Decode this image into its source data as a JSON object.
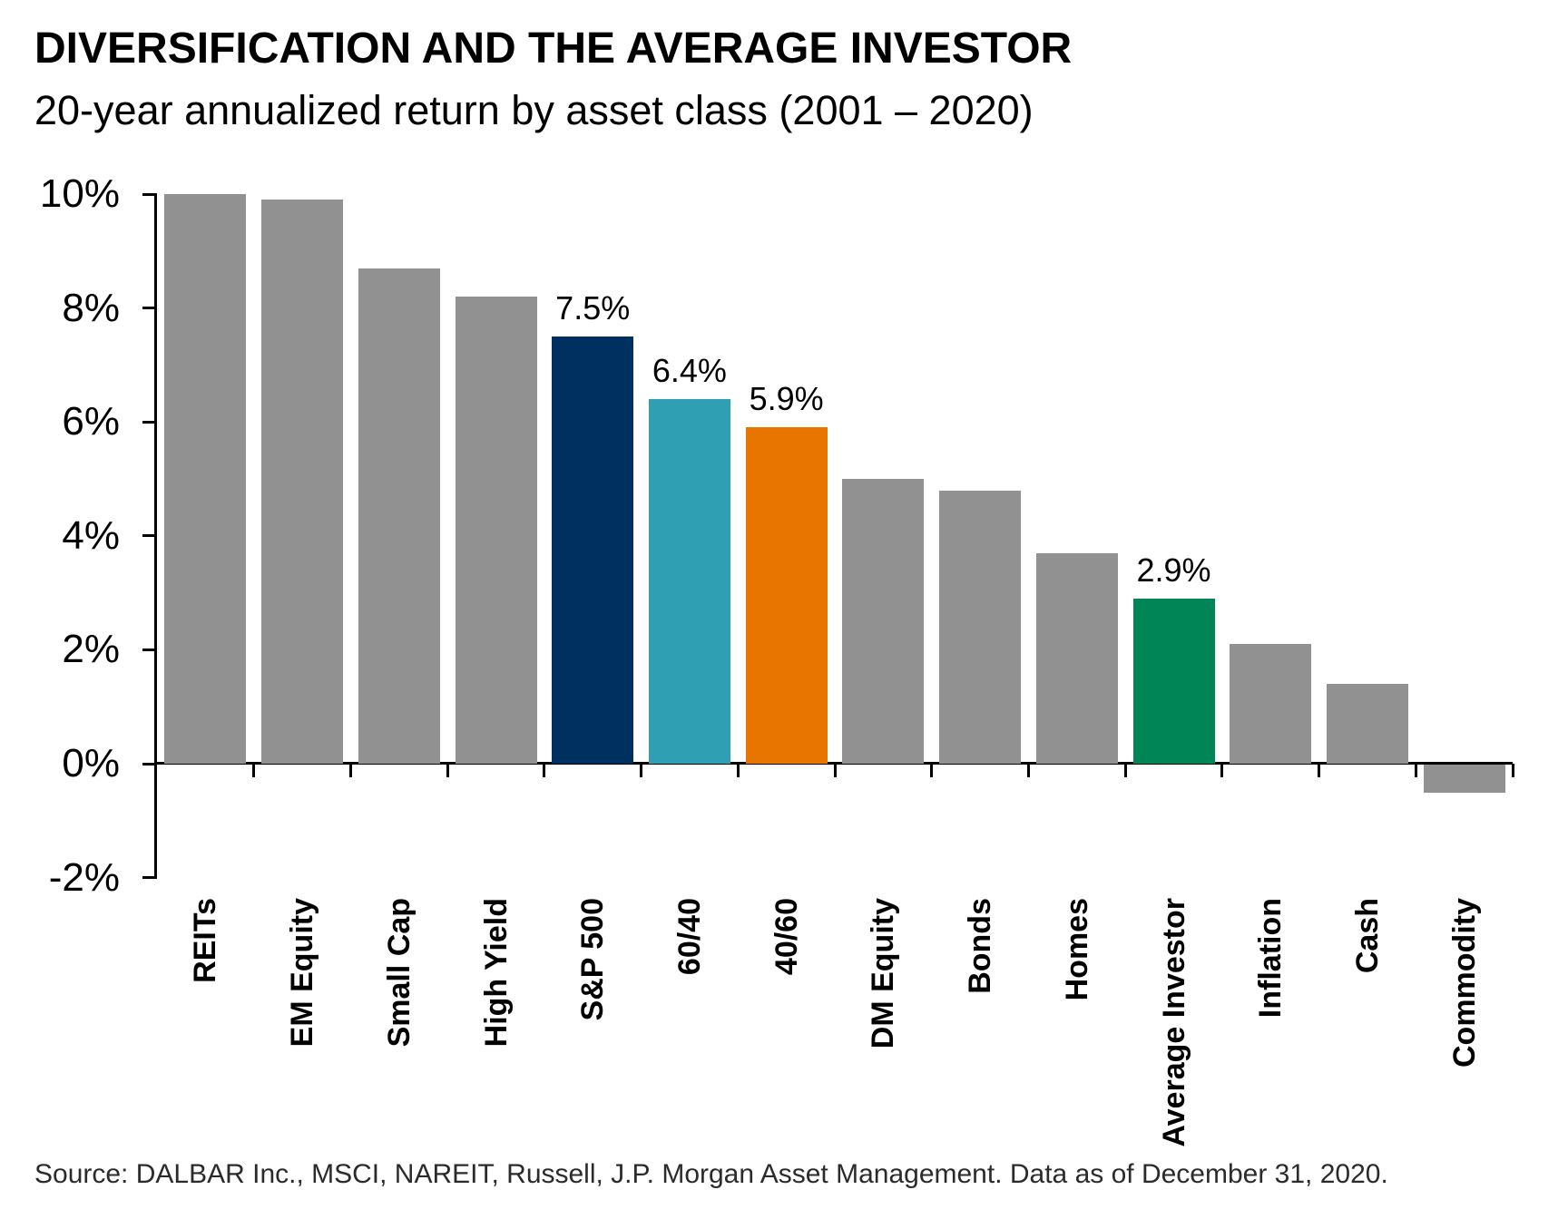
{
  "header": {
    "title": "DIVERSIFICATION AND THE AVERAGE INVESTOR",
    "subtitle": "20-year annualized return by asset class (2001 – 2020)"
  },
  "chart_data": {
    "type": "bar",
    "title": "DIVERSIFICATION AND THE AVERAGE INVESTOR",
    "subtitle": "20-year annualized return by asset class (2001 – 2020)",
    "xlabel": "",
    "ylabel": "",
    "ylim": [
      -2,
      10
    ],
    "grid": false,
    "legend": "none",
    "categories": [
      "REITs",
      "EM Equity",
      "Small Cap",
      "High Yield",
      "S&P 500",
      "60/40",
      "40/60",
      "DM Equity",
      "Bonds",
      "Homes",
      "Average Investor",
      "Inflation",
      "Cash",
      "Commodity"
    ],
    "values": [
      10.0,
      9.9,
      8.7,
      8.2,
      7.5,
      6.4,
      5.9,
      5.0,
      4.8,
      3.7,
      2.9,
      2.1,
      1.4,
      -0.5
    ],
    "series": [
      {
        "label": "REITs",
        "value": 10.0,
        "color": "#919191",
        "data_label": null
      },
      {
        "label": "EM Equity",
        "value": 9.9,
        "color": "#919191",
        "data_label": null
      },
      {
        "label": "Small Cap",
        "value": 8.7,
        "color": "#919191",
        "data_label": null
      },
      {
        "label": "High Yield",
        "value": 8.2,
        "color": "#919191",
        "data_label": null
      },
      {
        "label": "S&P 500",
        "value": 7.5,
        "color": "#003060",
        "data_label": "7.5%"
      },
      {
        "label": "60/40",
        "value": 6.4,
        "color": "#2f9fb4",
        "data_label": "6.4%"
      },
      {
        "label": "40/60",
        "value": 5.9,
        "color": "#e87500",
        "data_label": "5.9%"
      },
      {
        "label": "DM Equity",
        "value": 5.0,
        "color": "#919191",
        "data_label": null
      },
      {
        "label": "Bonds",
        "value": 4.8,
        "color": "#919191",
        "data_label": null
      },
      {
        "label": "Homes",
        "value": 3.7,
        "color": "#919191",
        "data_label": null
      },
      {
        "label": "Average Investor",
        "value": 2.9,
        "color": "#008557",
        "data_label": "2.9%"
      },
      {
        "label": "Inflation",
        "value": 2.1,
        "color": "#919191",
        "data_label": null
      },
      {
        "label": "Cash",
        "value": 1.4,
        "color": "#919191",
        "data_label": null
      },
      {
        "label": "Commodity",
        "value": -0.5,
        "color": "#919191",
        "data_label": null
      }
    ],
    "yticks": [
      {
        "label": "10%",
        "value": 10
      },
      {
        "label": "8%",
        "value": 8
      },
      {
        "label": "6%",
        "value": 6
      },
      {
        "label": "4%",
        "value": 4
      },
      {
        "label": "2%",
        "value": 2
      },
      {
        "label": "0%",
        "value": 0
      },
      {
        "label": "-2%",
        "value": -2
      }
    ],
    "colors": {
      "default_bar": "#919191",
      "sp500": "#003060",
      "sixty_forty": "#2f9fb4",
      "forty_sixty": "#e87500",
      "average_investor": "#008557",
      "axis": "#000000"
    }
  },
  "footer": {
    "source": "Source: DALBAR Inc., MSCI, NAREIT, Russell, J.P. Morgan Asset Management. Data as of December 31, 2020."
  }
}
